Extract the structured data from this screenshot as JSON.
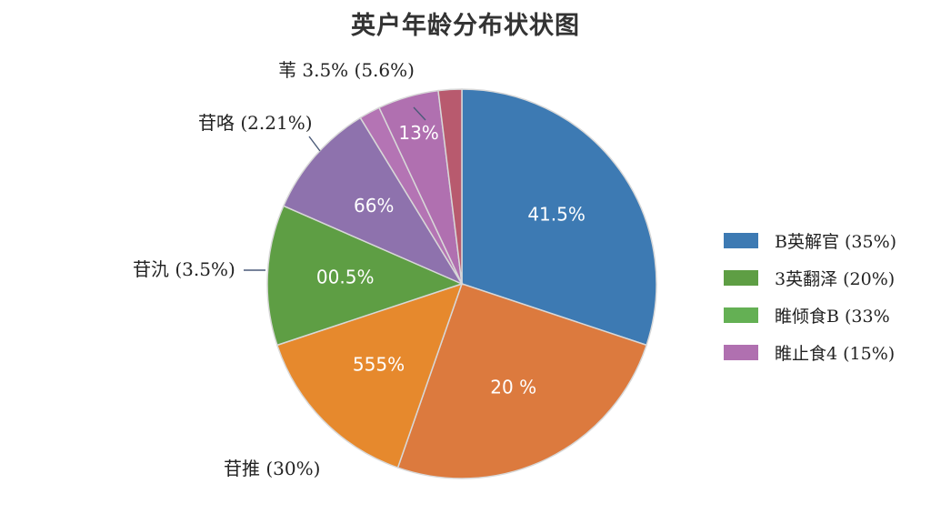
{
  "chart_data": {
    "type": "pie",
    "title": "英户年龄分布状状图",
    "slices": [
      {
        "value": 31,
        "color": "#3d7ab3",
        "label": "41.5%"
      },
      {
        "value": 26,
        "color": "#dc7a3e",
        "label": "20 %"
      },
      {
        "value": 15,
        "color": "#e6892d",
        "label": "555%",
        "outer_label": "苷推 (30%)"
      },
      {
        "value": 12,
        "color": "#5e9e44",
        "label": "00.5%",
        "outer_label": "苷氿 (3.5%)"
      },
      {
        "value": 10,
        "color": "#8e72ad",
        "label": "66%",
        "outer_label": "苷咯 (2.21%)"
      },
      {
        "value": 1.8,
        "color": "#b474b4",
        "label": ""
      },
      {
        "value": 5.2,
        "color": "#b070b0",
        "label": "13%",
        "outer_label": "苇 3.5% (5.6%)"
      },
      {
        "value": 2,
        "color": "#b85a6e",
        "label": ""
      }
    ],
    "legend": [
      {
        "label": "B英解官 (35%)",
        "color": "#3d7ab3"
      },
      {
        "label": "3英翻泽 (20%)",
        "color": "#5e9e44"
      },
      {
        "label": "睢倾食B (33%",
        "color": "#64b054"
      },
      {
        "label": "睢止食4 (15%)",
        "color": "#b070b0"
      }
    ],
    "legend_position": "right"
  }
}
